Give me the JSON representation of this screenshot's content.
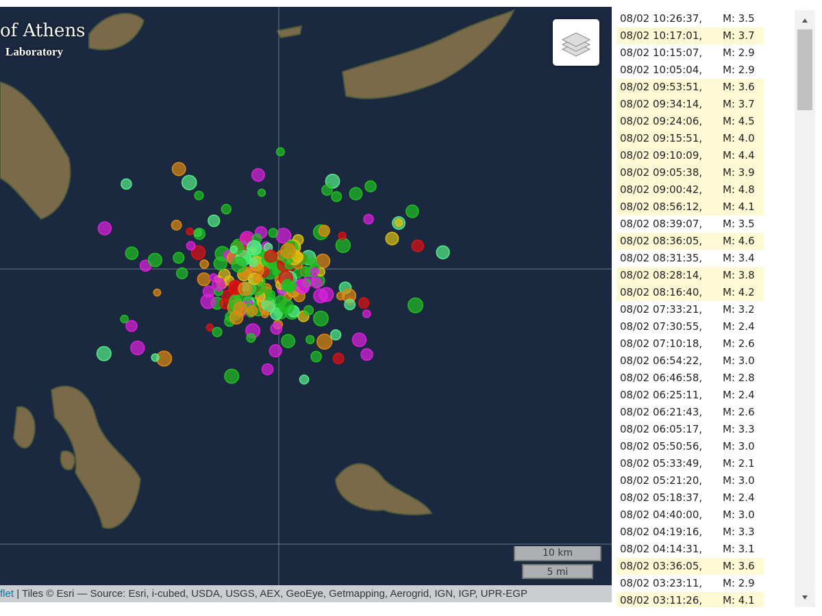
{
  "map": {
    "title_line1": "of Athens",
    "title_line2": "Laboratory",
    "scale_km": "10 km",
    "scale_mi": "5 mi",
    "attribution_link": "flet",
    "attribution": "| Tiles © Esri — Source: Esri, i-cubed, USDA, USGS, AEX, GeoEye, Getmapping, Aerogrid, IGN, IGP, UPR-EGP"
  },
  "events": [
    {
      "time": "08/02 10:26:37,",
      "magnitude": "M: 3.5",
      "highlight": false
    },
    {
      "time": "08/02 10:17:01,",
      "magnitude": "M: 3.7",
      "highlight": true
    },
    {
      "time": "08/02 10:15:07,",
      "magnitude": "M: 2.9",
      "highlight": false
    },
    {
      "time": "08/02 10:05:04,",
      "magnitude": "M: 2.9",
      "highlight": false
    },
    {
      "time": "08/02 09:53:51,",
      "magnitude": "M: 3.6",
      "highlight": true
    },
    {
      "time": "08/02 09:34:14,",
      "magnitude": "M: 3.7",
      "highlight": true
    },
    {
      "time": "08/02 09:24:06,",
      "magnitude": "M: 4.5",
      "highlight": true
    },
    {
      "time": "08/02 09:15:51,",
      "magnitude": "M: 4.0",
      "highlight": true
    },
    {
      "time": "08/02 09:10:09,",
      "magnitude": "M: 4.4",
      "highlight": true
    },
    {
      "time": "08/02 09:05:38,",
      "magnitude": "M: 3.9",
      "highlight": true
    },
    {
      "time": "08/02 09:00:42,",
      "magnitude": "M: 4.8",
      "highlight": true
    },
    {
      "time": "08/02 08:56:12,",
      "magnitude": "M: 4.1",
      "highlight": true
    },
    {
      "time": "08/02 08:39:07,",
      "magnitude": "M: 3.5",
      "highlight": false
    },
    {
      "time": "08/02 08:36:05,",
      "magnitude": "M: 4.6",
      "highlight": true
    },
    {
      "time": "08/02 08:31:35,",
      "magnitude": "M: 3.4",
      "highlight": false
    },
    {
      "time": "08/02 08:28:14,",
      "magnitude": "M: 3.8",
      "highlight": true
    },
    {
      "time": "08/02 08:16:40,",
      "magnitude": "M: 4.2",
      "highlight": true
    },
    {
      "time": "08/02 07:33:21,",
      "magnitude": "M: 3.2",
      "highlight": false
    },
    {
      "time": "08/02 07:30:55,",
      "magnitude": "M: 2.4",
      "highlight": false
    },
    {
      "time": "08/02 07:10:18,",
      "magnitude": "M: 2.6",
      "highlight": false
    },
    {
      "time": "08/02 06:54:22,",
      "magnitude": "M: 3.0",
      "highlight": false
    },
    {
      "time": "08/02 06:46:58,",
      "magnitude": "M: 2.8",
      "highlight": false
    },
    {
      "time": "08/02 06:25:11,",
      "magnitude": "M: 2.4",
      "highlight": false
    },
    {
      "time": "08/02 06:21:43,",
      "magnitude": "M: 2.6",
      "highlight": false
    },
    {
      "time": "08/02 06:05:17,",
      "magnitude": "M: 3.3",
      "highlight": false
    },
    {
      "time": "08/02 05:50:56,",
      "magnitude": "M: 3.0",
      "highlight": false
    },
    {
      "time": "08/02 05:33:49,",
      "magnitude": "M: 2.1",
      "highlight": false
    },
    {
      "time": "08/02 05:21:20,",
      "magnitude": "M: 3.0",
      "highlight": false
    },
    {
      "time": "08/02 05:18:37,",
      "magnitude": "M: 2.4",
      "highlight": false
    },
    {
      "time": "08/02 04:40:00,",
      "magnitude": "M: 3.0",
      "highlight": false
    },
    {
      "time": "08/02 04:19:16,",
      "magnitude": "M: 3.3",
      "highlight": false
    },
    {
      "time": "08/02 04:14:31,",
      "magnitude": "M: 3.1",
      "highlight": false
    },
    {
      "time": "08/02 03:36:05,",
      "magnitude": "M: 3.6",
      "highlight": true
    },
    {
      "time": "08/02 03:23:11,",
      "magnitude": "M: 2.9",
      "highlight": false
    },
    {
      "time": "08/02 03:11:26,",
      "magnitude": "M: 4.1",
      "highlight": true
    }
  ]
}
